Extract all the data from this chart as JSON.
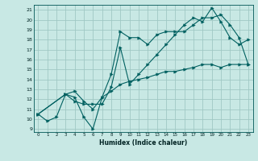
{
  "xlabel": "Humidex (Indice chaleur)",
  "bg_color": "#c8e8e4",
  "grid_color": "#a0c8c4",
  "line_color": "#006060",
  "xlim_min": -0.5,
  "xlim_max": 23.5,
  "ylim_min": 8.7,
  "ylim_max": 21.5,
  "xticks": [
    0,
    1,
    2,
    3,
    4,
    5,
    6,
    7,
    8,
    9,
    10,
    11,
    12,
    13,
    14,
    15,
    16,
    17,
    18,
    19,
    20,
    21,
    22,
    23
  ],
  "yticks": [
    9,
    10,
    11,
    12,
    13,
    14,
    15,
    16,
    17,
    18,
    19,
    20,
    21
  ],
  "line1_x": [
    0,
    1,
    2,
    3,
    4,
    5,
    6,
    7,
    8,
    9,
    10,
    11,
    12,
    13,
    14,
    15,
    16,
    17,
    18,
    19,
    20,
    21,
    22,
    23
  ],
  "line1_y": [
    10.5,
    9.8,
    10.2,
    12.5,
    12.2,
    10.2,
    9.0,
    12.2,
    14.5,
    18.8,
    18.2,
    18.2,
    17.5,
    18.5,
    18.8,
    18.8,
    18.8,
    19.5,
    20.2,
    20.2,
    20.5,
    19.5,
    18.2,
    15.5
  ],
  "line2_x": [
    0,
    3,
    4,
    5,
    6,
    7,
    8,
    9,
    10,
    11,
    12,
    13,
    14,
    15,
    16,
    17,
    18,
    19,
    20,
    21,
    22,
    23
  ],
  "line2_y": [
    10.5,
    12.5,
    11.8,
    11.5,
    11.5,
    11.5,
    13.2,
    17.2,
    13.5,
    14.5,
    15.5,
    16.5,
    17.5,
    18.5,
    19.5,
    20.2,
    19.8,
    21.2,
    19.8,
    18.2,
    17.5,
    18.0
  ],
  "line3_x": [
    0,
    3,
    4,
    5,
    6,
    7,
    8,
    9,
    10,
    11,
    12,
    13,
    14,
    15,
    16,
    17,
    18,
    19,
    20,
    21,
    22,
    23
  ],
  "line3_y": [
    10.5,
    12.5,
    12.8,
    11.8,
    11.0,
    12.2,
    12.8,
    13.5,
    13.8,
    14.0,
    14.2,
    14.5,
    14.8,
    14.8,
    15.0,
    15.2,
    15.5,
    15.5,
    15.2,
    15.5,
    15.5,
    15.5
  ]
}
